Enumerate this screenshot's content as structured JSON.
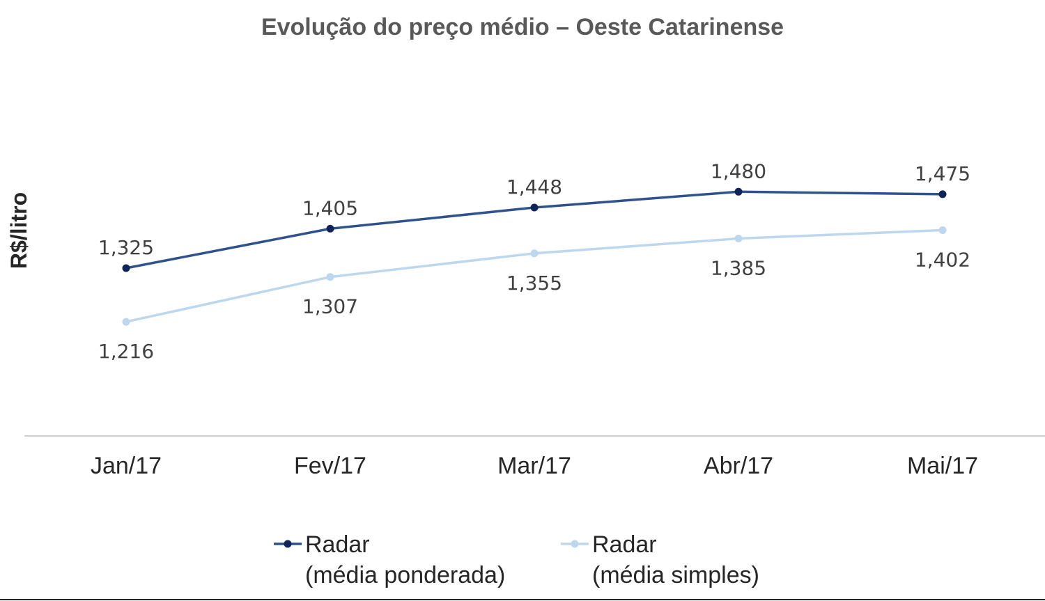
{
  "chart_data": {
    "type": "line",
    "title": "Evolução do preço médio – Oeste Catarinense",
    "xlabel": "",
    "ylabel": "R$/litro",
    "categories": [
      "Jan/17",
      "Fev/17",
      "Mar/17",
      "Abr/17",
      "Mai/17"
    ],
    "series": [
      {
        "name": "Radar (média ponderada)",
        "legend_lines": [
          "Radar",
          "(média ponderada)"
        ],
        "color": "#2F528F",
        "marker_color": "#0F2557",
        "values": [
          1.325,
          1.405,
          1.448,
          1.48,
          1.475
        ],
        "labels": [
          "1,325",
          "1,405",
          "1,448",
          "1,480",
          "1,475"
        ],
        "label_position": "above"
      },
      {
        "name": "Radar (média simples)",
        "legend_lines": [
          "Radar",
          "(média simples)"
        ],
        "color": "#BDD7EE",
        "marker_color": "#BDD7EE",
        "values": [
          1.216,
          1.307,
          1.355,
          1.385,
          1.402
        ],
        "labels": [
          "1,216",
          "1,307",
          "1,355",
          "1,385",
          "1,402"
        ],
        "label_position": "below"
      }
    ],
    "grid": false,
    "legend_position": "bottom",
    "axis_color": "#BFBFBF"
  }
}
